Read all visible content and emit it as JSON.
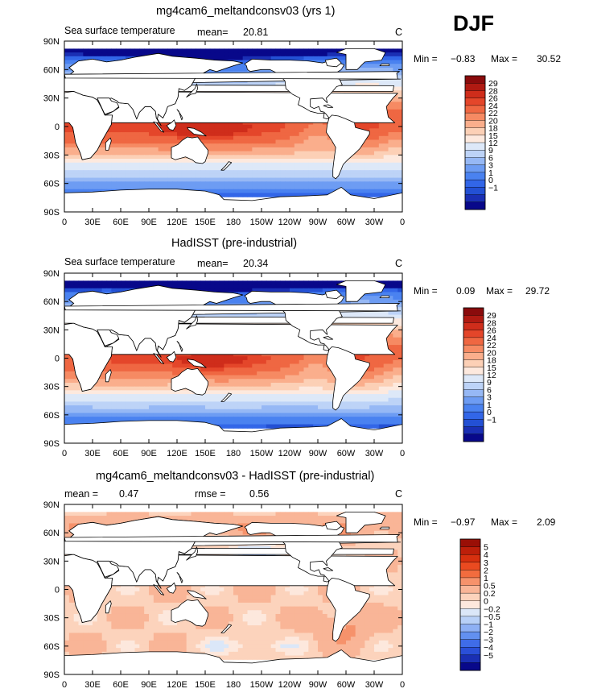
{
  "season": "DJF",
  "colors": {
    "sst_scale": [
      "#08088a",
      "#1a2fb4",
      "#2350d4",
      "#3266e8",
      "#4a82f0",
      "#6d9cf3",
      "#96b8f5",
      "#bdd3f7",
      "#dde8f8",
      "#fde9de",
      "#fcd0b6",
      "#faae8c",
      "#f68a63",
      "#ef6742",
      "#e4462a",
      "#cf2d1b",
      "#b01a12",
      "#8a0b0c"
    ],
    "diff_scale": [
      "#08088a",
      "#1a2fb4",
      "#2a4fd8",
      "#3f6ce8",
      "#6290f0",
      "#8eb0f4",
      "#b8d0f7",
      "#dbe7f8",
      "#fde8dd",
      "#fcd3bc",
      "#f9b597",
      "#f6926b",
      "#f26c3e",
      "#ea4a20",
      "#d7300f",
      "#bd1f0a",
      "#9a0f06"
    ],
    "land": "#ffffff",
    "coast": "#000000"
  },
  "chart_data": [
    {
      "type": "heatmap",
      "panel": "model",
      "title": "mg4cam6_meltandconsv03 (yrs 1)",
      "subtitle_left": "Sea surface temperature",
      "mean_label": "mean=",
      "mean_value": "20.81",
      "units": "C",
      "min_label": "Min =",
      "min_value": "−0.83",
      "max_label": "Max =",
      "max_value": "30.52",
      "field": "model",
      "x_ticks": [
        "0",
        "30E",
        "60E",
        "90E",
        "120E",
        "150E",
        "180",
        "150W",
        "120W",
        "90W",
        "60W",
        "30W",
        "0"
      ],
      "y_ticks": [
        "90N",
        "60N",
        "30N",
        "0",
        "30S",
        "60S",
        "90S"
      ],
      "xlim": [
        0,
        360
      ],
      "ylim": [
        -90,
        90
      ],
      "legend_levels": [
        "29",
        "28",
        "26",
        "24",
        "22",
        "20",
        "18",
        "15",
        "12",
        "9",
        "6",
        "3",
        "1",
        "0",
        "−1"
      ],
      "legend_bins": [
        -1,
        0,
        1,
        3,
        6,
        9,
        12,
        15,
        18,
        20,
        22,
        24,
        26,
        28,
        29
      ],
      "scale": "sst_scale"
    },
    {
      "type": "heatmap",
      "panel": "obs",
      "title": "HadISST (pre-industrial)",
      "subtitle_left": "Sea surface temperature",
      "mean_label": "mean=",
      "mean_value": "20.34",
      "units": "C",
      "min_label": "Min =",
      "min_value": "0.09",
      "max_label": "Max =",
      "max_value": "29.72",
      "field": "obs",
      "x_ticks": [
        "0",
        "30E",
        "60E",
        "90E",
        "120E",
        "150E",
        "180",
        "150W",
        "120W",
        "90W",
        "60W",
        "30W",
        "0"
      ],
      "y_ticks": [
        "90N",
        "60N",
        "30N",
        "0",
        "30S",
        "60S",
        "90S"
      ],
      "xlim": [
        0,
        360
      ],
      "ylim": [
        -90,
        90
      ],
      "legend_levels": [
        "29",
        "28",
        "26",
        "24",
        "22",
        "20",
        "18",
        "15",
        "12",
        "9",
        "6",
        "3",
        "1",
        "0",
        "−1"
      ],
      "legend_bins": [
        -1,
        0,
        1,
        3,
        6,
        9,
        12,
        15,
        18,
        20,
        22,
        24,
        26,
        28,
        29
      ],
      "scale": "sst_scale"
    },
    {
      "type": "heatmap",
      "panel": "diff",
      "title": "mg4cam6_meltandconsv03 - HadISST (pre-industrial)",
      "mean_label": "mean =",
      "mean_value": "0.47",
      "rmse_label": "rmse =",
      "rmse_value": "0.56",
      "units": "C",
      "min_label": "Min =",
      "min_value": "−0.97",
      "max_label": "Max =",
      "max_value": "2.09",
      "field": "diff",
      "x_ticks": [
        "0",
        "30E",
        "60E",
        "90E",
        "120E",
        "150E",
        "180",
        "150W",
        "120W",
        "90W",
        "60W",
        "30W",
        "0"
      ],
      "y_ticks": [
        "90N",
        "60N",
        "30N",
        "0",
        "30S",
        "60S",
        "90S"
      ],
      "xlim": [
        0,
        360
      ],
      "ylim": [
        -90,
        90
      ],
      "legend_levels": [
        "5",
        "4",
        "3",
        "2",
        "1",
        "0.5",
        "0.2",
        "0",
        "−0.2",
        "−0.5",
        "−1",
        "−2",
        "−3",
        "−4",
        "−5"
      ],
      "legend_bins": [
        -5,
        -4,
        -3,
        -2,
        -1,
        -0.5,
        -0.2,
        0,
        0.2,
        0.5,
        1,
        2,
        3,
        4,
        5
      ],
      "scale": "diff_scale"
    }
  ]
}
